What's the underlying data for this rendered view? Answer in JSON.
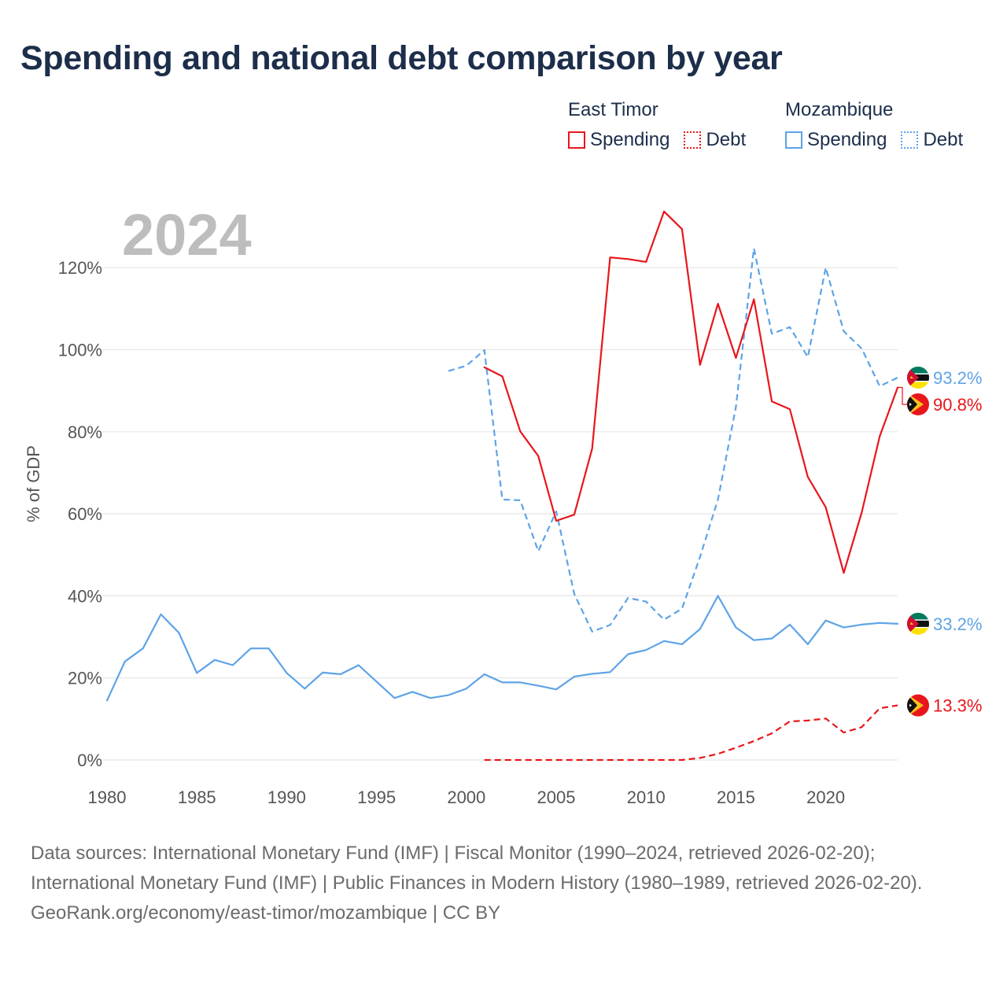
{
  "title": "Spending and national debt comparison by year",
  "legend": {
    "groups": [
      {
        "name": "East Timor",
        "spending_label": "Spending",
        "debt_label": "Debt",
        "color": "#e8161b"
      },
      {
        "name": "Mozambique",
        "spending_label": "Spending",
        "debt_label": "Debt",
        "color": "#5ea3e6"
      }
    ]
  },
  "colors": {
    "east_timor": "#e8161b",
    "mozambique": "#5ea3e6",
    "grid": "#e6e6e6",
    "axis_text": "#555555",
    "title": "#1c2e4a",
    "watermark": "#bdbdbd"
  },
  "chart_data": {
    "type": "line",
    "title": "Spending and national debt comparison by year",
    "ylabel": "% of GDP",
    "xlabel": "",
    "year_watermark": "2024",
    "xlim": [
      1980,
      2024
    ],
    "ylim": [
      0,
      135
    ],
    "x_ticks": [
      1980,
      1985,
      1990,
      1995,
      2000,
      2005,
      2010,
      2015,
      2020
    ],
    "x_tick_labels": [
      "1980",
      "1985",
      "1990",
      "1995",
      "2000",
      "2005",
      "2010",
      "2015",
      "2020"
    ],
    "y_ticks": [
      0,
      20,
      40,
      60,
      80,
      100,
      120
    ],
    "y_tick_labels": [
      "0%",
      "20%",
      "40%",
      "60%",
      "80%",
      "100%",
      "120%"
    ],
    "grid": true,
    "series": [
      {
        "name": "Mozambique Spending",
        "country": "Mozambique",
        "kind": "spending",
        "style": "solid",
        "color": "#5ea3e6",
        "end_label": "33.2%",
        "x": [
          1980,
          1981,
          1982,
          1983,
          1984,
          1985,
          1986,
          1987,
          1988,
          1989,
          1990,
          1991,
          1992,
          1993,
          1994,
          1995,
          1996,
          1997,
          1998,
          1999,
          2000,
          2001,
          2002,
          2003,
          2004,
          2005,
          2006,
          2007,
          2008,
          2009,
          2010,
          2011,
          2012,
          2013,
          2014,
          2015,
          2016,
          2017,
          2018,
          2019,
          2020,
          2021,
          2022,
          2023,
          2024
        ],
        "values": [
          14.5,
          24,
          27.2,
          35.5,
          31,
          21.2,
          24.4,
          23.1,
          27.2,
          27.2,
          21.2,
          17.4,
          21.3,
          20.9,
          23.1,
          19.1,
          15.1,
          16.6,
          15.1,
          15.8,
          17.4,
          20.9,
          18.9,
          18.9,
          18.1,
          17.2,
          20.3,
          21,
          21.4,
          25.8,
          26.8,
          29,
          28.2,
          31.9,
          40,
          32.3,
          29.2,
          29.6,
          33,
          28.2,
          34,
          32.3,
          33,
          33.4,
          33.2
        ]
      },
      {
        "name": "Mozambique Debt",
        "country": "Mozambique",
        "kind": "debt",
        "style": "dashed",
        "color": "#5ea3e6",
        "end_label": "93.2%",
        "x": [
          1999,
          2000,
          2001,
          2002,
          2003,
          2004,
          2005,
          2006,
          2007,
          2008,
          2009,
          2010,
          2011,
          2012,
          2013,
          2014,
          2015,
          2016,
          2017,
          2018,
          2019,
          2020,
          2021,
          2022,
          2023,
          2024
        ],
        "values": [
          94.8,
          96.1,
          99.9,
          63.5,
          63.3,
          50.9,
          60.6,
          40.5,
          31.3,
          32.9,
          39.5,
          38.6,
          34.2,
          36.9,
          49.5,
          63.5,
          86,
          124.7,
          103.9,
          105.5,
          98.2,
          120,
          104.5,
          100.3,
          91.1,
          93.2
        ]
      },
      {
        "name": "East Timor Spending",
        "country": "East Timor",
        "kind": "spending",
        "style": "solid",
        "color": "#e8161b",
        "end_label": "90.8%",
        "x": [
          2001,
          2002,
          2003,
          2004,
          2005,
          2006,
          2007,
          2008,
          2009,
          2010,
          2011,
          2012,
          2013,
          2014,
          2015,
          2016,
          2017,
          2018,
          2019,
          2020,
          2021,
          2022,
          2023,
          2024
        ],
        "values": [
          95.7,
          93.5,
          80.1,
          74.1,
          58.3,
          59.8,
          75.9,
          122.5,
          122.1,
          121.4,
          133.7,
          129.4,
          96.3,
          111.2,
          98,
          112.3,
          87.4,
          85.5,
          69,
          61.6,
          45.6,
          60.3,
          78.9,
          90.8
        ]
      },
      {
        "name": "East Timor Debt",
        "country": "East Timor",
        "kind": "debt",
        "style": "dashed",
        "color": "#e8161b",
        "end_label": "13.3%",
        "x": [
          2001,
          2002,
          2003,
          2004,
          2005,
          2006,
          2007,
          2008,
          2009,
          2010,
          2011,
          2012,
          2013,
          2014,
          2015,
          2016,
          2017,
          2018,
          2019,
          2020,
          2021,
          2022,
          2023,
          2024
        ],
        "values": [
          0,
          0,
          0,
          0,
          0,
          0,
          0,
          0,
          0,
          0,
          0,
          0,
          0.5,
          1.5,
          3,
          4.6,
          6.5,
          9.4,
          9.6,
          10.1,
          6.7,
          8,
          12.6,
          13.3
        ]
      }
    ]
  },
  "footer": {
    "sources": "Data sources: International Monetary Fund (IMF) | Fiscal Monitor (1990–2024, retrieved 2026-02-20); International Monetary Fund (IMF) | Public Finances in Modern History (1980–1989, retrieved 2026-02-20).",
    "credit": "GeoRank.org/economy/east-timor/mozambique | CC BY"
  }
}
